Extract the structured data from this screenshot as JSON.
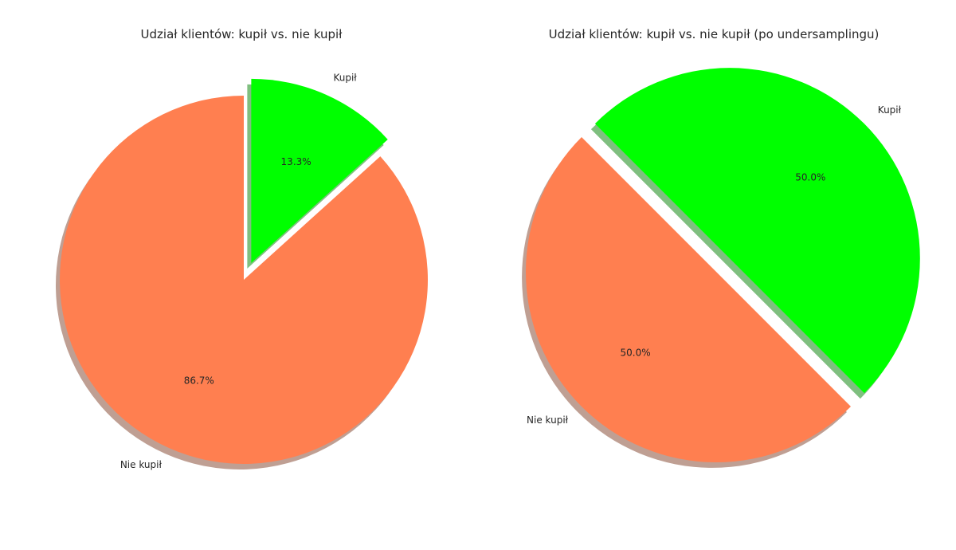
{
  "chart_data": [
    {
      "type": "pie",
      "title": "Udział klientów: kupił vs. nie kupił",
      "categories": [
        "Nie kupił",
        "Kupił"
      ],
      "values": [
        86.7,
        13.3
      ],
      "percent_labels": [
        "86.7%",
        "13.3%"
      ],
      "colors": [
        "#FF7F50",
        "#00FF00"
      ],
      "exploded": [
        false,
        true
      ],
      "shadow": true
    },
    {
      "type": "pie",
      "title": "Udział klientów: kupił vs. nie kupił (po undersamplingu)",
      "categories": [
        "Nie kupił",
        "Kupił"
      ],
      "values": [
        50.0,
        50.0
      ],
      "percent_labels": [
        "50.0%",
        "50.0%"
      ],
      "colors": [
        "#FF7F50",
        "#00FF00"
      ],
      "exploded": [
        false,
        true
      ],
      "shadow": true
    }
  ]
}
